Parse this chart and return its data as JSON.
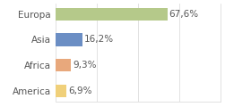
{
  "categories": [
    "Europa",
    "Asia",
    "Africa",
    "America"
  ],
  "values": [
    67.6,
    16.2,
    9.3,
    6.9
  ],
  "labels": [
    "67,6%",
    "16,2%",
    "9,3%",
    "6,9%"
  ],
  "bar_colors": [
    "#b5c98a",
    "#6b8ec4",
    "#e8a87c",
    "#f0d07a"
  ],
  "background_color": "#ffffff",
  "plot_bg_color": "#ffffff",
  "xlim": [
    0,
    100
  ],
  "bar_height": 0.5,
  "label_fontsize": 7.5,
  "category_fontsize": 7.5,
  "grid_color": "#dddddd"
}
